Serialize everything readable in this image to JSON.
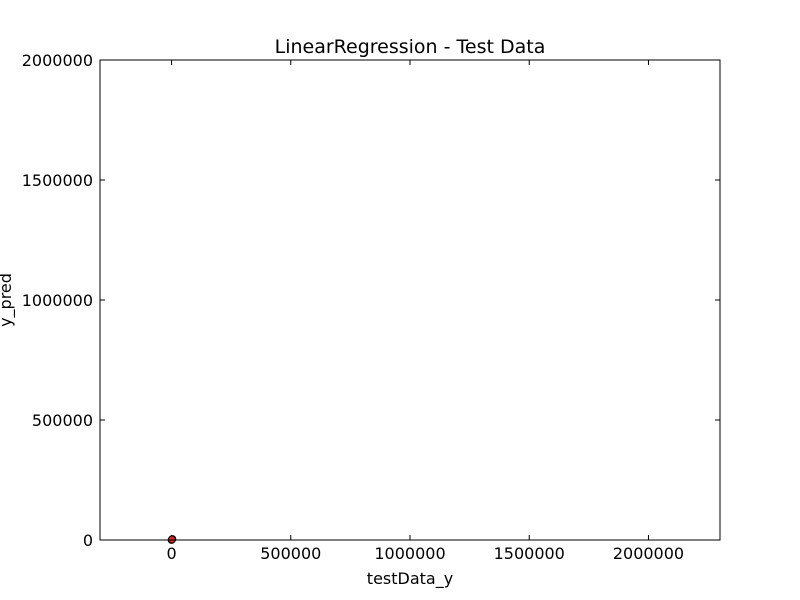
{
  "chart_data": {
    "type": "scatter",
    "title": "LinearRegression - Test Data",
    "xlabel": "testData_y",
    "ylabel": "y_pred",
    "xlim": [
      -300000,
      2300000
    ],
    "ylim": [
      0,
      2000000
    ],
    "x_ticks": [
      0,
      500000,
      1000000,
      1500000,
      2000000
    ],
    "y_ticks": [
      0,
      500000,
      1000000,
      1500000,
      2000000
    ],
    "grid": false,
    "marker_color": "#d62728",
    "marker_edge_color": "#000000",
    "series": [
      {
        "x": [
          0,
          1200,
          2500,
          3500,
          1800
        ],
        "y": [
          0,
          1500,
          3000,
          4200,
          2000
        ]
      }
    ]
  }
}
